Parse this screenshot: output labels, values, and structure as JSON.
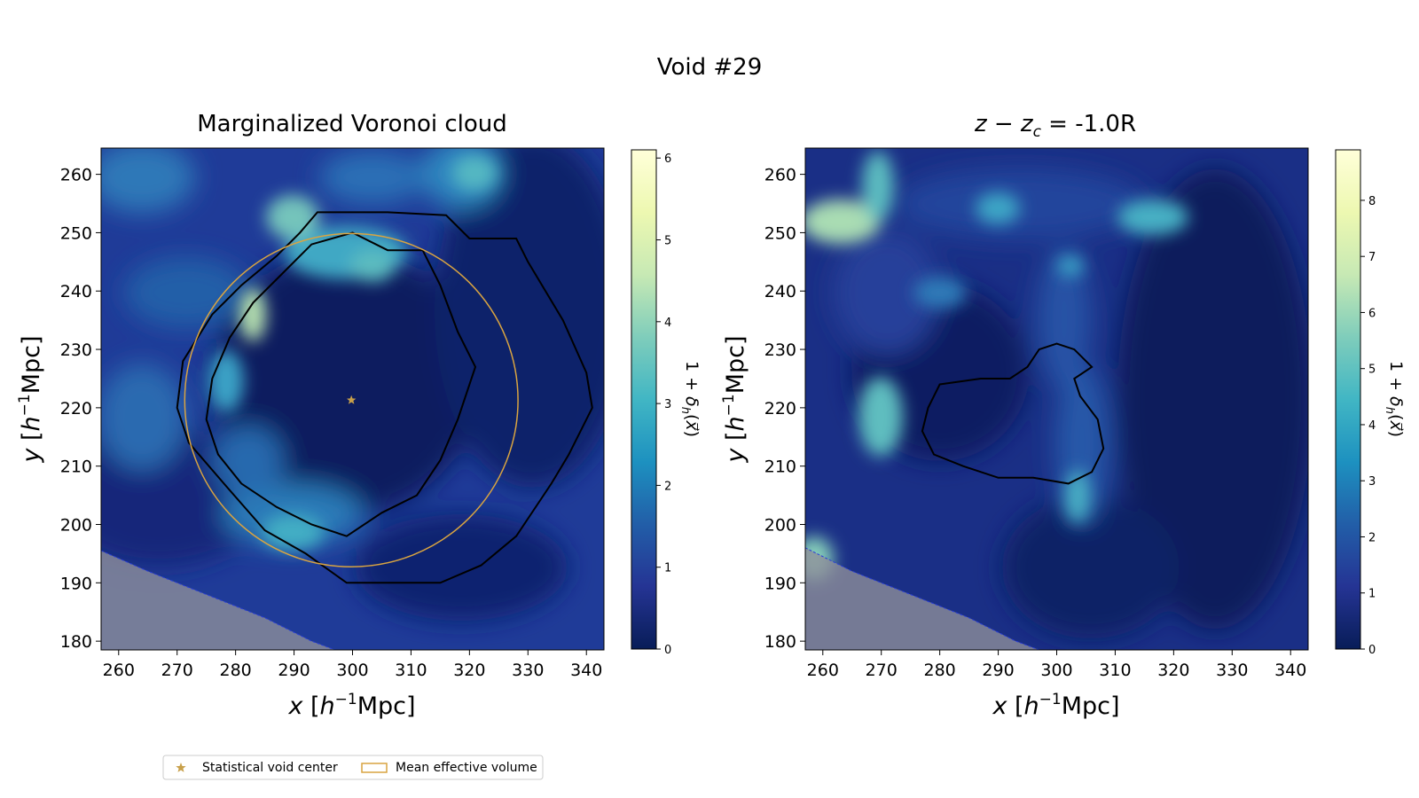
{
  "figure": {
    "title": "Void #29"
  },
  "colors": {
    "cmap": [
      "#081d58",
      "#253494",
      "#225ea8",
      "#1d91c0",
      "#41b6c4",
      "#7fcdbb",
      "#c7e9b4",
      "#edf8b1",
      "#ffffd9"
    ],
    "circle": "#d9a441",
    "center": "#c8a04a",
    "contour": "#000000",
    "mask": "#8f8f9a",
    "mask_edge": "#2b3fd8"
  },
  "chart_data": [
    {
      "type": "heatmap",
      "title": "Marginalized Voronoi cloud",
      "xlabel": "x [h^-1Mpc]",
      "ylabel": "y [h^-1Mpc]",
      "xlim": [
        257,
        343
      ],
      "ylim": [
        178.5,
        264.5
      ],
      "xticks": [
        "260",
        "270",
        "280",
        "290",
        "300",
        "310",
        "320",
        "330",
        "340"
      ],
      "yticks": [
        "180",
        "190",
        "200",
        "210",
        "220",
        "230",
        "240",
        "250",
        "260"
      ],
      "colorbar": {
        "label": "1 + δ_h(x⃗)",
        "range": [
          0,
          6.1
        ],
        "ticks": [
          "0",
          "1",
          "2",
          "3",
          "4",
          "5",
          "6"
        ]
      },
      "void_center": [
        299.8,
        221.3
      ],
      "mean_effective_radius": 28.5,
      "outer_contour": [
        [
          294,
          253.5
        ],
        [
          306,
          253.5
        ],
        [
          316,
          253
        ],
        [
          320,
          249
        ],
        [
          328,
          249
        ],
        [
          330,
          245
        ],
        [
          336,
          235
        ],
        [
          340,
          226
        ],
        [
          341,
          220
        ],
        [
          337,
          212
        ],
        [
          334,
          207
        ],
        [
          328,
          198
        ],
        [
          322,
          193
        ],
        [
          315,
          190
        ],
        [
          305,
          190
        ],
        [
          299,
          190
        ],
        [
          292,
          195
        ],
        [
          285,
          199
        ],
        [
          278,
          207
        ],
        [
          272,
          214
        ],
        [
          270,
          220
        ],
        [
          271,
          228
        ],
        [
          276,
          236
        ],
        [
          281,
          241
        ],
        [
          287,
          246
        ],
        [
          291,
          250
        ]
      ],
      "inner_contour": [
        [
          300,
          250
        ],
        [
          306,
          247
        ],
        [
          312,
          247
        ],
        [
          315,
          241
        ],
        [
          318,
          233
        ],
        [
          321,
          227
        ],
        [
          318,
          218
        ],
        [
          315,
          211
        ],
        [
          311,
          205
        ],
        [
          305,
          202
        ],
        [
          299,
          198
        ],
        [
          293,
          200
        ],
        [
          287,
          203
        ],
        [
          281,
          207
        ],
        [
          277,
          212
        ],
        [
          275,
          218
        ],
        [
          276,
          225
        ],
        [
          279,
          232
        ],
        [
          283,
          238
        ],
        [
          288,
          243
        ],
        [
          293,
          248
        ]
      ],
      "masked_region_edge": [
        [
          257,
          195.5
        ],
        [
          265,
          192
        ],
        [
          275,
          188
        ],
        [
          285,
          184
        ],
        [
          293,
          180
        ],
        [
          297,
          178.5
        ]
      ]
    },
    {
      "type": "heatmap",
      "title_lhs": "z − z",
      "title_sub": "c",
      "title_rhs": " = -1.0R",
      "xlabel": "x [h^-1Mpc]",
      "ylabel": "y [h^-1Mpc]",
      "xlim": [
        257,
        343
      ],
      "ylim": [
        178.5,
        264.5
      ],
      "xticks": [
        "260",
        "270",
        "280",
        "290",
        "300",
        "310",
        "320",
        "330",
        "340"
      ],
      "yticks": [
        "180",
        "190",
        "200",
        "210",
        "220",
        "230",
        "240",
        "250",
        "260"
      ],
      "colorbar": {
        "label": "1 + δ_h(x⃗)",
        "range": [
          0,
          8.9
        ],
        "ticks": [
          "0",
          "1",
          "2",
          "3",
          "4",
          "5",
          "6",
          "7",
          "8"
        ]
      },
      "contour": [
        [
          280,
          224
        ],
        [
          287,
          225
        ],
        [
          292,
          225
        ],
        [
          295,
          227
        ],
        [
          297,
          230
        ],
        [
          300,
          231
        ],
        [
          303,
          230
        ],
        [
          306,
          227
        ],
        [
          303,
          225
        ],
        [
          304,
          222
        ],
        [
          307,
          218
        ],
        [
          308,
          213
        ],
        [
          306,
          209
        ],
        [
          302,
          207
        ],
        [
          296,
          208
        ],
        [
          290,
          208
        ],
        [
          284,
          210
        ],
        [
          279,
          212
        ],
        [
          277,
          216
        ],
        [
          278,
          220
        ]
      ],
      "masked_region_edge": [
        [
          257,
          196
        ],
        [
          265,
          192
        ],
        [
          275,
          188
        ],
        [
          285,
          184
        ],
        [
          293,
          180
        ],
        [
          297,
          178.5
        ]
      ]
    }
  ],
  "legend": {
    "items": [
      {
        "label": "Statistical void center",
        "marker": "star"
      },
      {
        "label": "Mean effective volume",
        "marker": "rect"
      }
    ]
  }
}
